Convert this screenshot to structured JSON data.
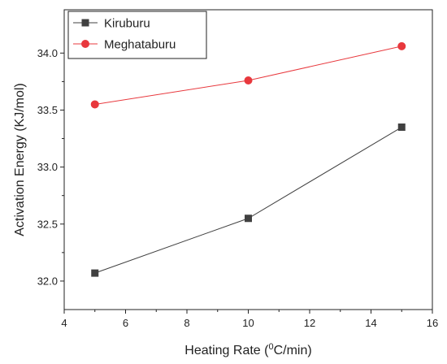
{
  "chart_data": {
    "type": "line",
    "title": "",
    "xlabel_prefix": "Heating Rate (",
    "xlabel_sup": "0",
    "xlabel_suffix": "C/min)",
    "ylabel": "Activation Energy (KJ/mol)",
    "xlim": [
      4,
      16
    ],
    "ylim": [
      31.75,
      34.38
    ],
    "xticks": [
      4,
      6,
      8,
      10,
      12,
      14,
      16
    ],
    "yticks": [
      32.0,
      32.5,
      33.0,
      33.5,
      34.0
    ],
    "grid": false,
    "legend_position": "top-left",
    "series": [
      {
        "name": "Kiruburu",
        "marker": "square",
        "color": "#404040",
        "x": [
          5,
          10,
          15
        ],
        "y": [
          32.07,
          32.55,
          33.35
        ]
      },
      {
        "name": "Meghataburu",
        "marker": "circle",
        "color": "#e8383d",
        "x": [
          5,
          10,
          15
        ],
        "y": [
          33.55,
          33.76,
          34.06
        ]
      }
    ]
  }
}
